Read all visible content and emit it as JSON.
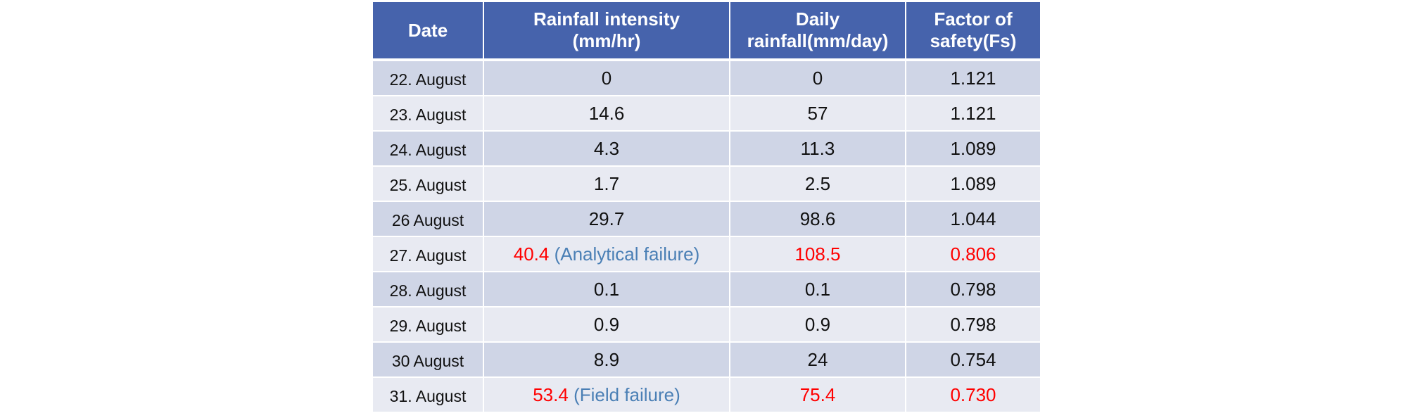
{
  "table": {
    "headers": [
      [
        "Date"
      ],
      [
        "Rainfall intensity",
        "(mm/hr)"
      ],
      [
        "Daily",
        "rainfall(mm/day)"
      ],
      [
        "Factor of",
        "safety(Fs)"
      ]
    ],
    "rows": [
      {
        "date": "22. August",
        "intensity": "0",
        "intensity_note": "",
        "daily": "0",
        "fs": "1.121",
        "highlight": false
      },
      {
        "date": "23. August",
        "intensity": "14.6",
        "intensity_note": "",
        "daily": "57",
        "fs": "1.121",
        "highlight": false
      },
      {
        "date": "24. August",
        "intensity": "4.3",
        "intensity_note": "",
        "daily": "11.3",
        "fs": "1.089",
        "highlight": false
      },
      {
        "date": "25. August",
        "intensity": "1.7",
        "intensity_note": "",
        "daily": "2.5",
        "fs": "1.089",
        "highlight": false
      },
      {
        "date": "26 August",
        "intensity": "29.7",
        "intensity_note": "",
        "daily": "98.6",
        "fs": "1.044",
        "highlight": false
      },
      {
        "date": "27. August",
        "intensity": "40.4",
        "intensity_note": "(Analytical failure)",
        "daily": "108.5",
        "fs": "0.806",
        "highlight": true
      },
      {
        "date": "28. August",
        "intensity": "0.1",
        "intensity_note": "",
        "daily": "0.1",
        "fs": "0.798",
        "highlight": false
      },
      {
        "date": "29. August",
        "intensity": "0.9",
        "intensity_note": "",
        "daily": "0.9",
        "fs": "0.798",
        "highlight": false
      },
      {
        "date": "30 August",
        "intensity": "8.9",
        "intensity_note": "",
        "daily": "24",
        "fs": "0.754",
        "highlight": false
      },
      {
        "date": "31. August",
        "intensity": "53.4",
        "intensity_note": "(Field failure)",
        "daily": "75.4",
        "fs": "0.730",
        "highlight": true
      }
    ]
  },
  "colors": {
    "header_bg": "#4663ac",
    "row_odd": "#cfd5e6",
    "row_even": "#e8eaf2",
    "highlight_value": "#ff0000",
    "highlight_note": "#4a7fb5"
  }
}
